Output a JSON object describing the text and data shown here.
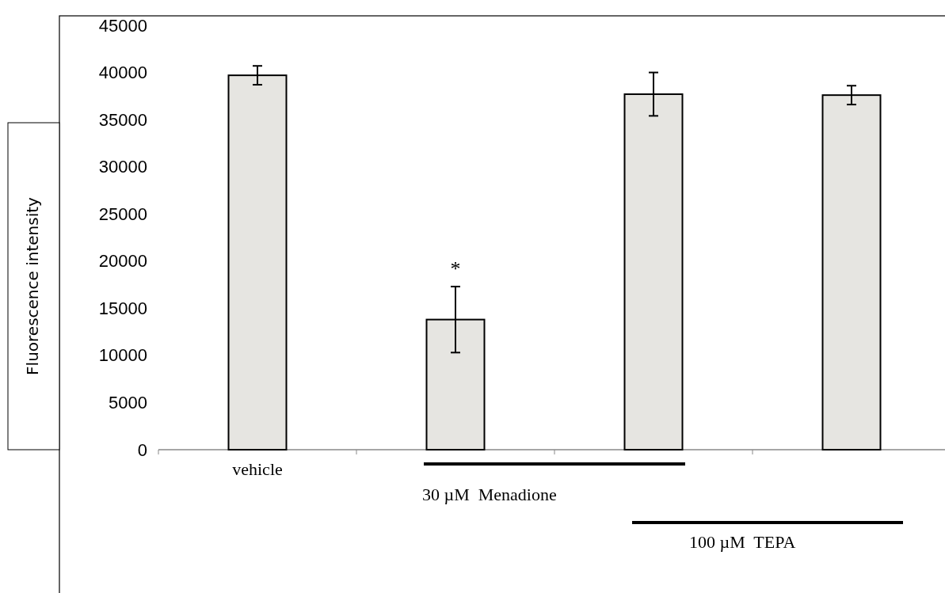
{
  "chart_data": {
    "type": "bar",
    "ylabel": "Fluorescence intensity",
    "categories": [
      "vehicle",
      null,
      null,
      null
    ],
    "values": [
      39700,
      13800,
      37700,
      37600
    ],
    "errors": [
      1000,
      3500,
      2300,
      1000
    ],
    "color": "#e6e5e1",
    "ylim": [
      0,
      45000
    ],
    "yticks": [
      0,
      5000,
      10000,
      15000,
      20000,
      25000,
      30000,
      35000,
      40000,
      45000
    ],
    "grid": false,
    "annotations": [
      "*",
      "30 µM  Menadione",
      "100 µM  TEPA"
    ]
  }
}
